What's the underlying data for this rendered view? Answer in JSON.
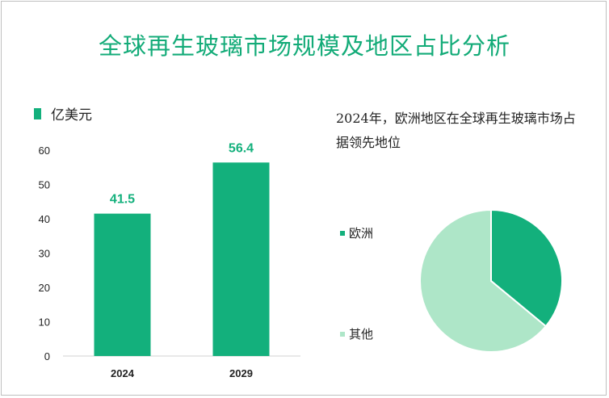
{
  "title": "全球再生玻璃市场规模及地区占比分析",
  "colors": {
    "title": "#13ab78",
    "bar": "#13b07c",
    "europe": "#13b07c",
    "other": "#aee6c8"
  },
  "chart_data": [
    {
      "type": "bar",
      "legend": "亿美元",
      "categories": [
        "2024",
        "2029"
      ],
      "values": [
        41.5,
        56.4
      ],
      "value_labels": [
        "41.5",
        "56.4"
      ],
      "ylim": [
        0,
        60
      ],
      "yticks": [
        "0",
        "10",
        "20",
        "30",
        "40",
        "50",
        "60"
      ],
      "grid": false
    },
    {
      "type": "pie",
      "note": "2024年，欧洲地区在全球再生玻璃市场占据领先地位",
      "slices": [
        {
          "label": "欧洲",
          "value": 36
        },
        {
          "label": "其他",
          "value": 64
        }
      ]
    }
  ]
}
